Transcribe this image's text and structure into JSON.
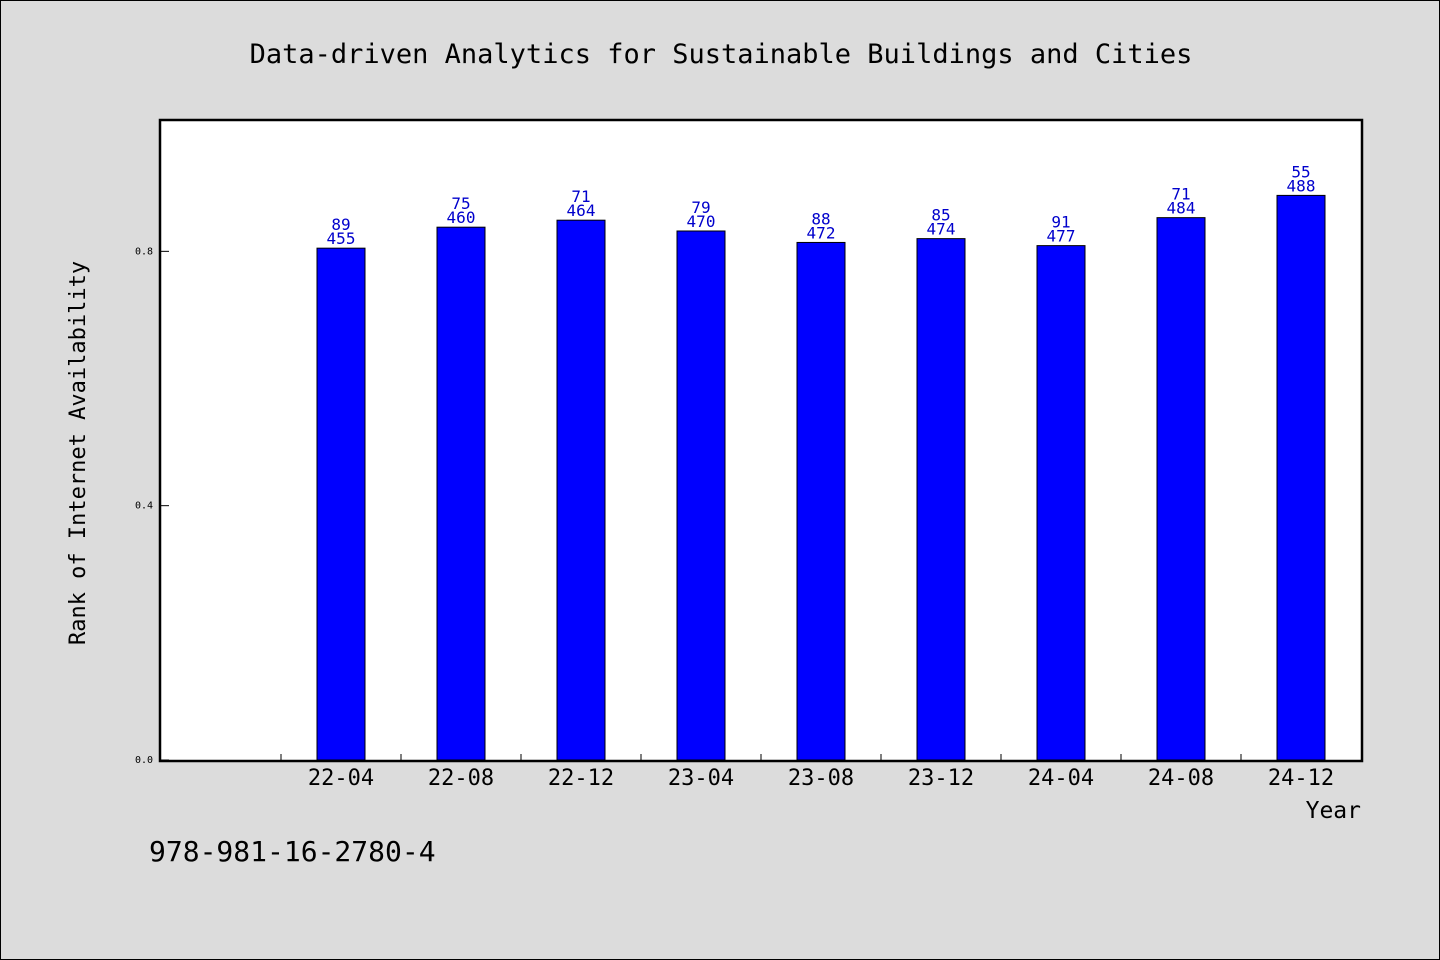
{
  "chart_data": {
    "type": "bar",
    "title": "Data-driven Analytics for Sustainable Buildings and Cities",
    "xlabel": "Year",
    "ylabel": "Rank of Internet Availability",
    "categories": [
      "22-04",
      "22-08",
      "22-12",
      "23-04",
      "23-08",
      "23-12",
      "24-04",
      "24-08",
      "24-12"
    ],
    "values": [
      0.805,
      0.838,
      0.849,
      0.832,
      0.814,
      0.82,
      0.809,
      0.853,
      0.888
    ],
    "labels_top": [
      "89",
      "75",
      "71",
      "79",
      "88",
      "85",
      "91",
      "71",
      "55"
    ],
    "labels_bottom": [
      "455",
      "460",
      "464",
      "470",
      "472",
      "474",
      "477",
      "484",
      "488"
    ],
    "ylim": [
      0,
      1.005
    ],
    "yticks": [
      "0.0",
      "0.4",
      "0.8"
    ],
    "bar_color": "#0000ff",
    "label_color": "#0000cc",
    "grid": false,
    "legend": "none"
  },
  "footer": {
    "note": "978-981-16-2780-4"
  }
}
